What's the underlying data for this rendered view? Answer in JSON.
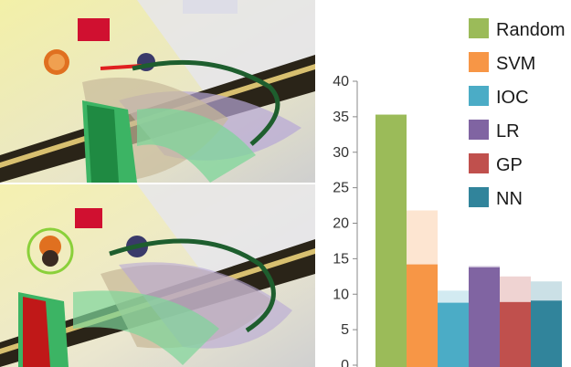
{
  "chart_data": {
    "type": "bar",
    "ylim": [
      0,
      40
    ],
    "y_ticks": [
      "0",
      "5",
      "10",
      "15",
      "20",
      "25",
      "30",
      "35",
      "40"
    ],
    "grid": false,
    "legend_position": "top-right",
    "series": [
      {
        "name": "Random",
        "color": "#9bbb59",
        "value": 35.3,
        "upper": 35.3
      },
      {
        "name": "SVM",
        "color": "#f79646",
        "value": 14.2,
        "upper": 21.8
      },
      {
        "name": "IOC",
        "color": "#4bacc6",
        "value": 8.8,
        "upper": 10.5
      },
      {
        "name": "LR",
        "color": "#8064a2",
        "value": 13.8,
        "upper": 14.0
      },
      {
        "name": "GP",
        "color": "#c0504d",
        "value": 8.9,
        "upper": 12.5
      },
      {
        "name": "NN",
        "color": "#31849b",
        "value": 9.1,
        "upper": 11.8
      }
    ]
  }
}
